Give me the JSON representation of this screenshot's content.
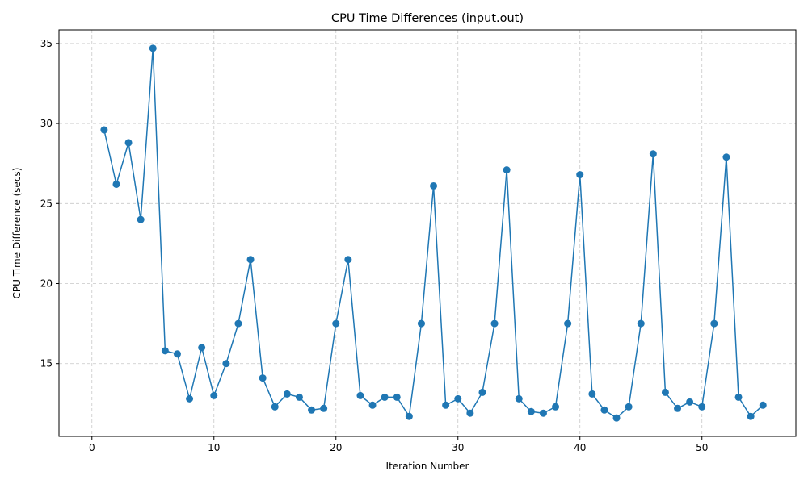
{
  "chart_data": {
    "type": "line",
    "title": "CPU Time Differences (input.out)",
    "xlabel": "Iteration Number",
    "ylabel": "CPU Time Difference (secs)",
    "xlim": [
      -2.7,
      57.7
    ],
    "ylim": [
      10.45,
      35.85
    ],
    "xticks": [
      0,
      10,
      20,
      30,
      40,
      50
    ],
    "yticks": [
      15,
      20,
      25,
      30,
      35
    ],
    "grid": true,
    "color": "#1f77b4",
    "marker": "circle",
    "series": [
      {
        "name": "CPU Time Difference",
        "x": [
          1,
          2,
          3,
          4,
          5,
          6,
          7,
          8,
          9,
          10,
          11,
          12,
          13,
          14,
          15,
          16,
          17,
          18,
          19,
          20,
          21,
          22,
          23,
          24,
          25,
          26,
          27,
          28,
          29,
          30,
          31,
          32,
          33,
          34,
          35,
          36,
          37,
          38,
          39,
          40,
          41,
          42,
          43,
          44,
          45,
          46,
          47,
          48,
          49,
          50,
          51,
          52,
          53,
          54,
          55
        ],
        "values": [
          29.6,
          26.2,
          28.8,
          24.0,
          34.7,
          15.8,
          15.6,
          12.8,
          16.0,
          13.0,
          15.0,
          17.5,
          21.5,
          14.1,
          12.3,
          13.1,
          12.9,
          12.1,
          12.2,
          17.5,
          21.5,
          13.0,
          12.4,
          12.9,
          12.9,
          11.7,
          17.5,
          26.1,
          12.4,
          12.8,
          11.9,
          13.2,
          17.5,
          27.1,
          12.8,
          12.0,
          11.9,
          12.3,
          17.5,
          26.8,
          13.1,
          12.1,
          11.6,
          12.3,
          17.5,
          28.1,
          13.2,
          12.2,
          12.6,
          12.3,
          17.5,
          27.9,
          12.9,
          11.7,
          12.4
        ]
      }
    ]
  }
}
